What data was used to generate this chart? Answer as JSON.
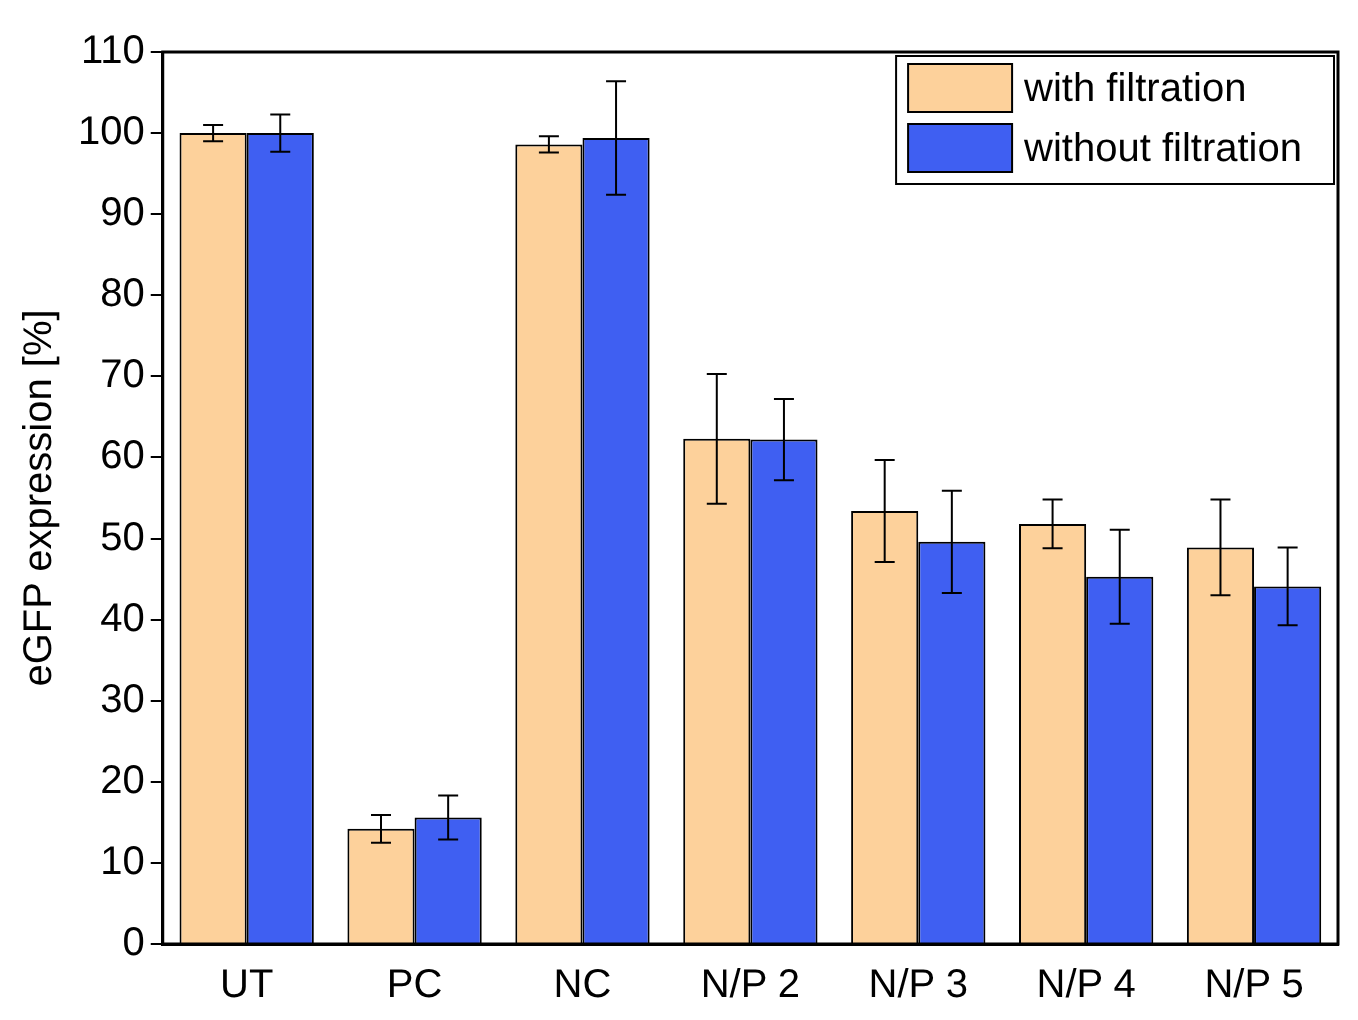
{
  "chart_data": {
    "type": "bar",
    "ylabel": "eGFP expression [%]",
    "categories": [
      "UT",
      "PC",
      "NC",
      "N/P 2",
      "N/P 3",
      "N/P 4",
      "N/P 5"
    ],
    "series": [
      {
        "name": "with filtration",
        "color": "#fdd19b",
        "values": [
          100,
          14.2,
          98.6,
          62.3,
          53.4,
          51.8,
          48.9
        ],
        "errors": [
          1,
          1.7,
          1,
          8,
          6.3,
          3,
          5.9
        ]
      },
      {
        "name": "without filtration",
        "color": "#3f5ff2",
        "values": [
          100,
          15.6,
          99.4,
          62.2,
          49.6,
          45.3,
          44.1
        ],
        "errors": [
          2.3,
          2.7,
          7,
          5,
          6.3,
          5.8,
          4.8
        ]
      }
    ],
    "ylim": [
      0,
      110
    ],
    "yticks": [
      0,
      10,
      20,
      30,
      40,
      50,
      60,
      70,
      80,
      90,
      100,
      110
    ],
    "grid": false,
    "legend": "top right"
  }
}
